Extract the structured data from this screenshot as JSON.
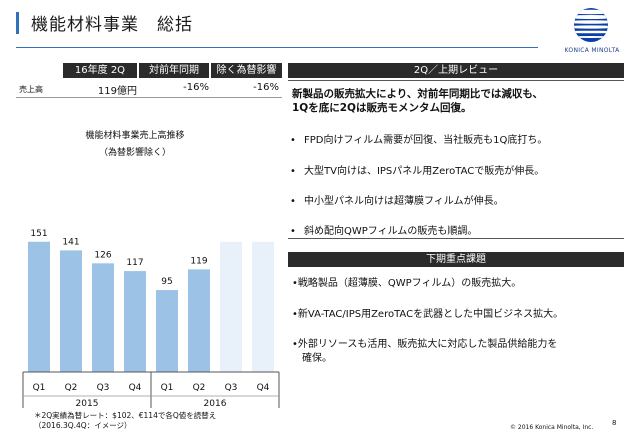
{
  "header": {
    "title": "機能材料事業　総括",
    "brand": "KONICA MINOLTA"
  },
  "summary_table": {
    "columns": [
      "16年度 2Q",
      "対前年同期",
      "除く為替影響"
    ],
    "row_label": "売上高",
    "values": [
      "119億円",
      "-16%",
      "-16%"
    ]
  },
  "chart_data": {
    "type": "bar",
    "title": "機能材料事業売上高推移",
    "subtitle": "（為替影響除く）",
    "categories": [
      "Q1",
      "Q2",
      "Q3",
      "Q4",
      "Q1",
      "Q2",
      "Q3",
      "Q4"
    ],
    "groups": [
      "2015",
      "2016"
    ],
    "values": [
      151,
      141,
      126,
      117,
      95,
      119,
      null,
      null
    ],
    "value_labels": [
      "151",
      "141",
      "126",
      "117",
      "95",
      "119",
      "",
      ""
    ],
    "ylim": [
      0,
      160
    ],
    "colors": {
      "bar": "#9cc3e6",
      "bar_empty": "#e8f0f9"
    }
  },
  "footnote": {
    "line1": "＊2Q実績為替レート：$102、€114で各Q値を読替え",
    "line2": "（2016.3Q.4Q：イメージ）"
  },
  "review": {
    "heading": "2Q／上期レビュー",
    "lead_line1": "新製品の販売拡大により、対前年同期比では減収も、",
    "lead_line2": "1Qを底に2Qは販売モメンタム回復。",
    "bullets": [
      "FPD向けフィルム需要が回復、当社販売も1Q底打ち。",
      "大型TV向けは、IPSパネル用ZeroTACで販売が伸長。",
      "中小型パネル向けは超薄膜フィルムが伸長。",
      "斜め配向QWPフィルムの販売も順調。"
    ]
  },
  "priorities": {
    "heading": "下期重点課題",
    "items": [
      "•戦略製品（超薄膜、QWPフィルム）の販売拡大。",
      "•新VA-TAC/IPS用ZeroTACを武器とした中国ビジネス拡大。",
      "•外部リソースも活用、販売拡大に対応した製品供給能力を",
      "　確保。"
    ]
  },
  "footer": {
    "copyright": "© 2016 Konica Minolta, Inc.",
    "page": "8"
  }
}
